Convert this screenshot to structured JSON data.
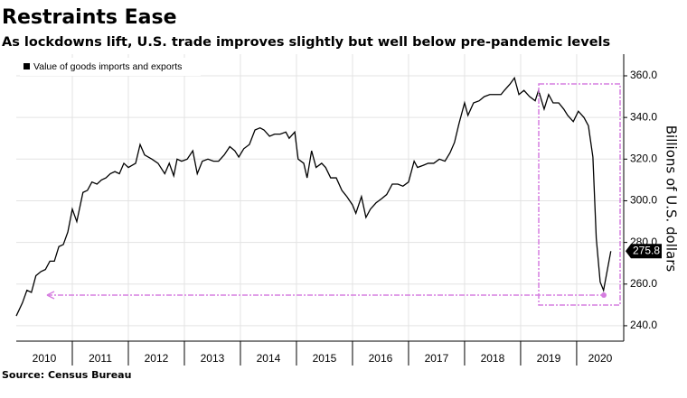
{
  "chart_data": {
    "type": "line",
    "title": "Restraints Ease",
    "subtitle": "As lockdowns lift, U.S. trade improves slightly but well below pre-pandemic levels",
    "source": "Source: Census Bureau",
    "y_axis_label": "Billions of U.S. dollars",
    "x": [
      2010.0,
      2010.11,
      2010.19,
      2010.27,
      2010.35,
      2010.44,
      2010.52,
      2010.6,
      2010.68,
      2010.76,
      2010.84,
      2010.92,
      2011.0,
      2011.08,
      2011.19,
      2011.27,
      2011.35,
      2011.44,
      2011.52,
      2011.6,
      2011.68,
      2011.76,
      2011.84,
      2011.92,
      2012.0,
      2012.13,
      2012.21,
      2012.29,
      2012.42,
      2012.53,
      2012.65,
      2012.73,
      2012.81,
      2012.87,
      2012.95,
      2013.05,
      2013.15,
      2013.23,
      2013.32,
      2013.42,
      2013.52,
      2013.61,
      2013.71,
      2013.81,
      2013.9,
      2013.97,
      2014.06,
      2014.16,
      2014.26,
      2014.35,
      2014.42,
      2014.52,
      2014.61,
      2014.71,
      2014.81,
      2014.87,
      2014.97,
      2015.03,
      2015.13,
      2015.19,
      2015.27,
      2015.35,
      2015.45,
      2015.52,
      2015.61,
      2015.71,
      2015.81,
      2015.9,
      2016.0,
      2016.06,
      2016.16,
      2016.24,
      2016.32,
      2016.42,
      2016.52,
      2016.61,
      2016.71,
      2016.81,
      2016.9,
      2017.0,
      2017.1,
      2017.16,
      2017.26,
      2017.35,
      2017.45,
      2017.55,
      2017.65,
      2017.74,
      2017.82,
      2017.9,
      2018.0,
      2018.06,
      2018.16,
      2018.26,
      2018.35,
      2018.45,
      2018.55,
      2018.65,
      2018.71,
      2018.81,
      2018.89,
      2018.97,
      2019.06,
      2019.16,
      2019.26,
      2019.32,
      2019.42,
      2019.5,
      2019.58,
      2019.68,
      2019.77,
      2019.84,
      2019.94,
      2020.03,
      2020.13,
      2020.21,
      2020.29,
      2020.35,
      2020.42,
      2020.48,
      2020.61
    ],
    "series": [
      {
        "name": "Value of goods imports and exports",
        "color": "#000000",
        "values": [
          244.7,
          251,
          257,
          256,
          264,
          266,
          267,
          271,
          271,
          278,
          279,
          285,
          296,
          290,
          304,
          305,
          309,
          308,
          310,
          311,
          313,
          314,
          313,
          318,
          316,
          318,
          327,
          322,
          320,
          318,
          313,
          318,
          312,
          320,
          319,
          320,
          324,
          313,
          319,
          320,
          319,
          319,
          322,
          326,
          324,
          321,
          325,
          327,
          334,
          335,
          334,
          331,
          332,
          332,
          333,
          330,
          333,
          320,
          318,
          311,
          324,
          316,
          318,
          316,
          311,
          311,
          305,
          302,
          298,
          294,
          302,
          292,
          296,
          299,
          301,
          303,
          308,
          308,
          307,
          309,
          319,
          316,
          317,
          318,
          318,
          320,
          319,
          323,
          328,
          337,
          347,
          341,
          347,
          348,
          350,
          351,
          351,
          351,
          353,
          356,
          359,
          351,
          353,
          350,
          348,
          353,
          344,
          351,
          347,
          347,
          344,
          341,
          338,
          343,
          340,
          336,
          321,
          282,
          261,
          257,
          275.8
        ]
      }
    ],
    "xlim": [
      2010,
      2020.84
    ],
    "xticks": [
      2010,
      2011,
      2012,
      2013,
      2014,
      2015,
      2016,
      2017,
      2018,
      2019,
      2020
    ],
    "ylim": [
      232.6,
      370.4
    ],
    "yticks": [
      {
        "value": 240,
        "label": "240.0"
      },
      {
        "value": 260,
        "label": "260.0"
      },
      {
        "value": 280,
        "label": "280.0"
      },
      {
        "value": 300,
        "label": "300.0"
      },
      {
        "value": 320,
        "label": "320.0"
      },
      {
        "value": 340,
        "label": "340.0"
      },
      {
        "value": 360,
        "label": "360.0"
      }
    ],
    "grid": true
  }
}
